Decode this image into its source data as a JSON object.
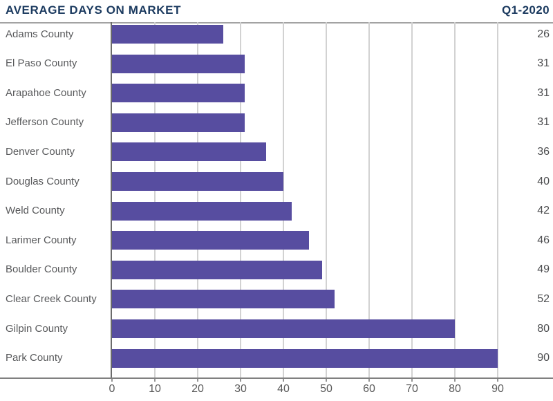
{
  "header": {
    "title": "AVERAGE DAYS ON MARKET",
    "period": "Q1-2020"
  },
  "chart_data": {
    "type": "bar",
    "orientation": "horizontal",
    "title": "AVERAGE DAYS ON MARKET",
    "subtitle": "Q1-2020",
    "categories": [
      "Adams County",
      "El Paso County",
      "Arapahoe County",
      "Jefferson County",
      "Denver County",
      "Douglas County",
      "Weld County",
      "Larimer County",
      "Boulder County",
      "Clear Creek County",
      "Gilpin County",
      "Park County"
    ],
    "values": [
      26,
      31,
      31,
      31,
      36,
      40,
      42,
      46,
      49,
      52,
      80,
      90
    ],
    "value_labels": [
      "26",
      "31",
      "31",
      "31",
      "36",
      "40",
      "42",
      "46",
      "49",
      "52",
      "80",
      "90"
    ],
    "xlabel": "",
    "ylabel": "",
    "xlim": [
      0,
      95
    ],
    "xticks": [
      0,
      10,
      20,
      30,
      40,
      50,
      60,
      70,
      80,
      90
    ],
    "grid": "vertical",
    "legend": "none"
  },
  "colors": {
    "title_text": "#1B3A5F",
    "bar_fill": "#574DA0",
    "category_text": "#58595B",
    "value_text": "#4D4E50",
    "tick_text": "#595959",
    "gridline": "#D2D2D2",
    "x_axis_line": "#808080",
    "y_axis_line": "#6B6B6B",
    "top_border": "#A3A3A3"
  }
}
